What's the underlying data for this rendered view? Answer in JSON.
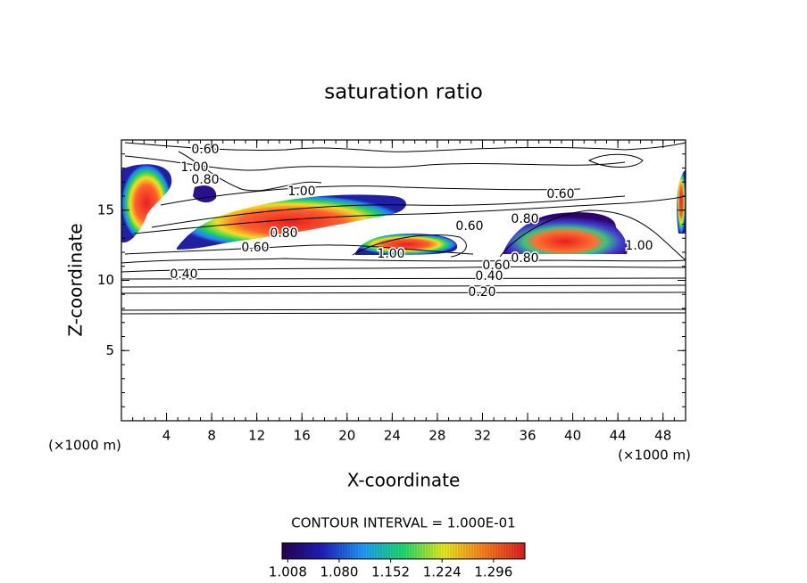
{
  "chart_data": {
    "type": "contour",
    "title": "saturation ratio",
    "x_label": "X-coordinate",
    "y_label": "Z-coordinate",
    "x_unit": "(×1000 m)",
    "y_unit": "(×1000 m)",
    "xlim": [
      0,
      50
    ],
    "xticks": [
      4,
      8,
      12,
      16,
      20,
      24,
      28,
      32,
      36,
      40,
      44,
      48
    ],
    "ylim": [
      0,
      20
    ],
    "yticks": [
      5,
      10,
      15
    ],
    "contour_labels": [
      "0.60",
      "1.00",
      "0.80",
      "1.00",
      "0.80",
      "0.60",
      "1.00",
      "0.40",
      "0.20",
      "0.40",
      "0.60",
      "0.80",
      "0.60",
      "0.60",
      "0.80",
      "1.00"
    ],
    "contour_interval": "CONTOUR INTERVAL = 1.000E-01",
    "colorbar": {
      "clim": [
        1.0,
        1.34
      ],
      "colors": [
        "#2a0050",
        "#2020c0",
        "#20a0ff",
        "#20e070",
        "#f0f020",
        "#ff8020",
        "#e02020"
      ],
      "ticks": [
        {
          "value": 1.008,
          "label": "1.008"
        },
        {
          "value": 1.08,
          "label": "1.080"
        },
        {
          "value": 1.152,
          "label": "1.152"
        },
        {
          "value": 1.224,
          "label": "1.224"
        },
        {
          "value": 1.296,
          "label": "1.296"
        }
      ]
    }
  }
}
